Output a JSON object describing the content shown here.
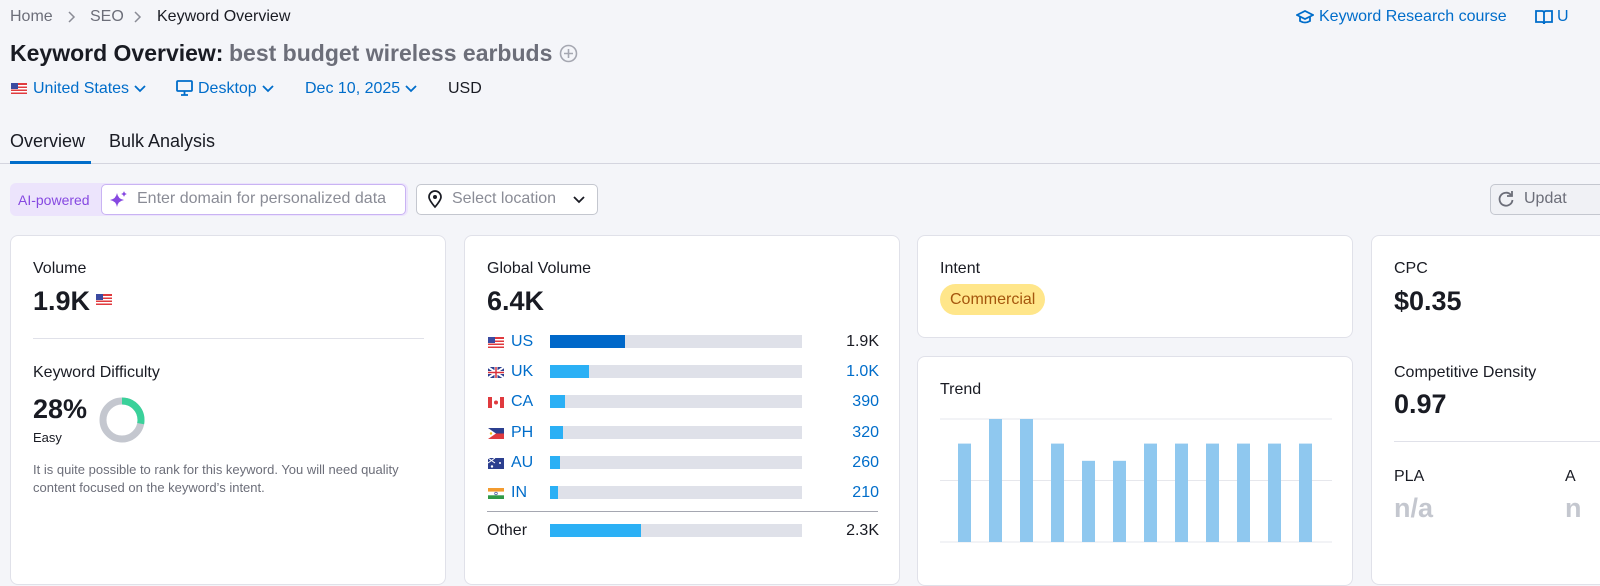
{
  "breadcrumbs": [
    "Home",
    "SEO",
    "Keyword Overview"
  ],
  "header_links": [
    "Keyword Research course",
    "U"
  ],
  "title": "Keyword Overview:",
  "keyword": "best budget wireless earbuds",
  "filters": {
    "database": "United States",
    "device": "Desktop",
    "date": "Dec 10, 2025",
    "currency": "USD"
  },
  "tabs": [
    "Overview",
    "Bulk Analysis"
  ],
  "ai_badge": "AI-powered",
  "domain_placeholder": "Enter domain for personalized data",
  "location_placeholder": "Select location",
  "update_button": "Updat",
  "volume": {
    "label": "Volume",
    "value": "1.9K"
  },
  "keyword_difficulty": {
    "label": "Keyword Difficulty",
    "value": {
      "value": 28,
      "label": "28%"
    },
    "level": "Easy",
    "description": "It is quite possible to rank for this keyword. You will need quality content focused on the keyword’s intent."
  },
  "global_volume": {
    "label": "Global Volume",
    "total": {
      "value": 6400,
      "label": "6.4K"
    },
    "countries": [
      {
        "code": "US",
        "volume": {
          "value": 1900,
          "label": "1.9K"
        }
      },
      {
        "code": "UK",
        "volume": {
          "value": 1000,
          "label": "1.0K"
        }
      },
      {
        "code": "CA",
        "volume": 390
      },
      {
        "code": "PH",
        "volume": 320
      },
      {
        "code": "AU",
        "volume": 260
      },
      {
        "code": "IN",
        "volume": 210
      }
    ],
    "other": {
      "name": "Other",
      "volume": {
        "value": 2300,
        "label": "2.3K"
      }
    }
  },
  "intent": {
    "label": "Intent",
    "value": "Commercial"
  },
  "trend": {
    "label": "Trend",
    "values": [
      0.8,
      1,
      1,
      0.8,
      0.66,
      0.66,
      0.8,
      0.8,
      0.8,
      0.8,
      0.8,
      0.8
    ],
    "ylim": [
      0,
      1
    ],
    "gridlines": [
      0,
      0.5,
      1
    ]
  },
  "cpc": {
    "label": "CPC",
    "value": "$0.35"
  },
  "competitive_density": {
    "label": "Competitive Density",
    "value": "0.97"
  },
  "pla": {
    "label": "PLA",
    "value": "n/a"
  },
  "ads": {
    "label": "A",
    "value": "n"
  }
}
